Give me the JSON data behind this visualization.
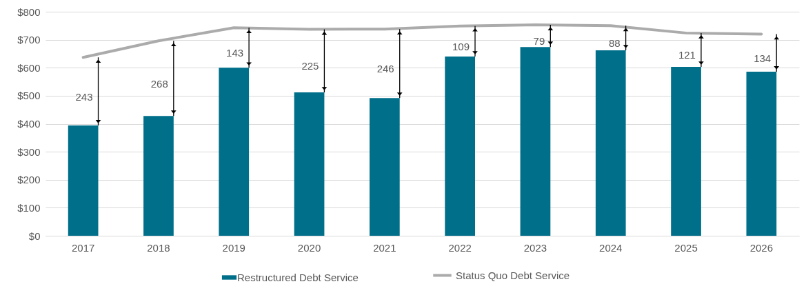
{
  "chart_data": {
    "type": "bar",
    "categories": [
      "2017",
      "2018",
      "2019",
      "2020",
      "2021",
      "2022",
      "2023",
      "2024",
      "2025",
      "2026"
    ],
    "series": [
      {
        "name": "Restructured Debt Service",
        "color": "#006f8a",
        "values": [
          394,
          428,
          600,
          512,
          492,
          640,
          674,
          662,
          603,
          586
        ]
      },
      {
        "name": "Status Quo Debt Service",
        "color": "#ababab",
        "type": "line",
        "values": [
          637,
          696,
          743,
          737,
          738,
          749,
          753,
          750,
          724,
          720
        ]
      }
    ],
    "ylim": [
      0,
      800
    ],
    "yticks": [
      {
        "value": 0,
        "label": "$0"
      },
      {
        "value": 100,
        "label": "$100"
      },
      {
        "value": 200,
        "label": "$200"
      },
      {
        "value": 300,
        "label": "$300"
      },
      {
        "value": 400,
        "label": "$400"
      },
      {
        "value": 500,
        "label": "$500"
      },
      {
        "value": 600,
        "label": "$600"
      },
      {
        "value": 700,
        "label": "$700"
      },
      {
        "value": 800,
        "label": "$800"
      }
    ],
    "grid": "y",
    "legend": "bottom",
    "annotations": [
      {
        "text": "243",
        "x": "2017",
        "y": 394
      },
      {
        "text": "268",
        "x": "2018",
        "y": 428
      },
      {
        "text": "143",
        "x": "2019",
        "y": 600
      },
      {
        "text": "225",
        "x": "2020",
        "y": 512
      },
      {
        "text": "246",
        "x": "2021",
        "y": 492
      },
      {
        "text": "109",
        "x": "2022",
        "y": 640
      },
      {
        "text": "79",
        "x": "2023",
        "y": 674
      },
      {
        "text": "88",
        "x": "2024",
        "y": 662
      },
      {
        "text": "121",
        "x": "2025",
        "y": 603
      },
      {
        "text": "134",
        "x": "2026",
        "y": 586
      }
    ]
  }
}
